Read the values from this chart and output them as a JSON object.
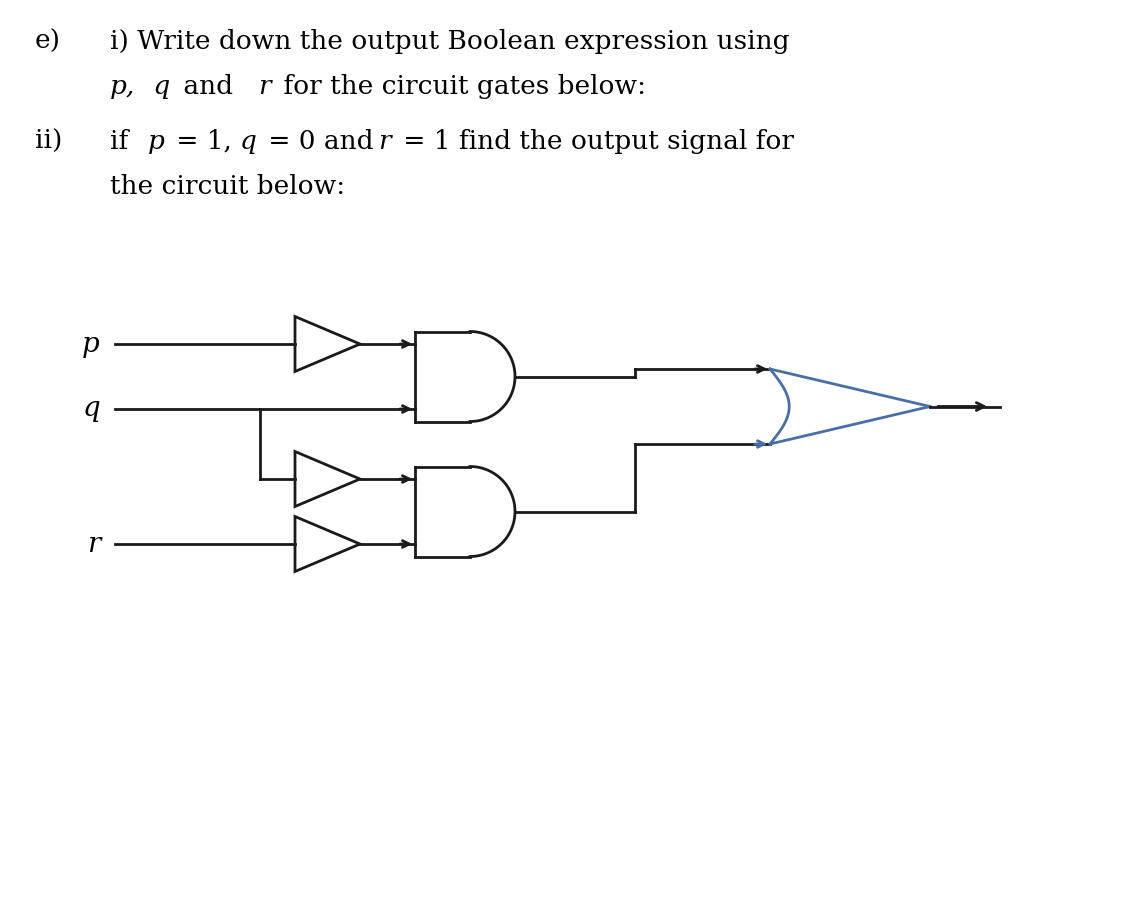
{
  "bg_color": "#ffffff",
  "line_color": "#1a1a1a",
  "blue_color": "#4a6fa5",
  "label_p": "p",
  "label_q": "q",
  "label_r": "r",
  "lw": 2.0,
  "text_line1": "e)   i) Write down the output Boolean expression using",
  "text_line2": "      p, q and r for the circuit gates below:",
  "text_line3": "ii)  if p = 1, q = 0 and r = 1 find the output signal for",
  "text_line4": "      the circuit below:"
}
